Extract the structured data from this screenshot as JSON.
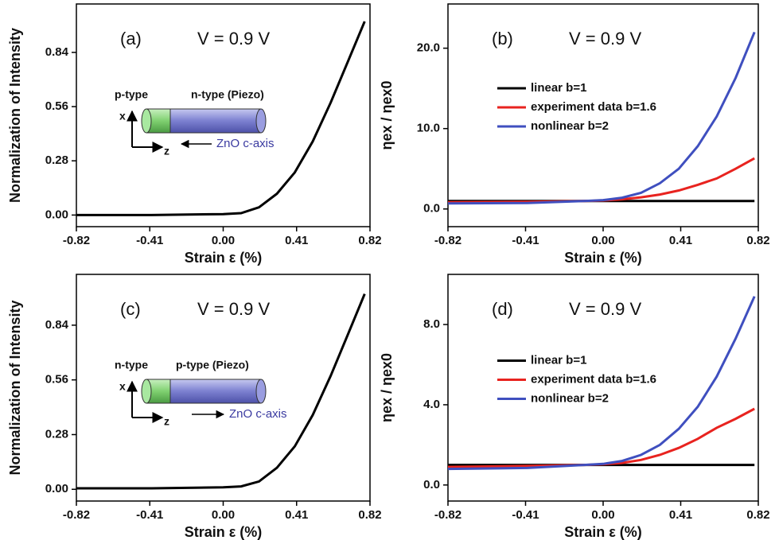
{
  "chart_data": [
    {
      "type": "line",
      "x_label": "Strain ε (%)",
      "y_label": "Normalization of Intensity",
      "annotations": [
        "(a)",
        "V = 0.9 V"
      ],
      "inset": {
        "left": "p-type",
        "right": "n-type (Piezo)",
        "x": "x",
        "z": "z",
        "axis": "ZnO c-axis"
      },
      "x": [
        -0.82,
        -0.4,
        0,
        0.1,
        0.2,
        0.3,
        0.4,
        0.5,
        0.6,
        0.7,
        0.79
      ],
      "values": [
        0,
        0,
        0.005,
        0.01,
        0.04,
        0.11,
        0.22,
        0.38,
        0.58,
        0.8,
        1.0
      ],
      "color": "#000000",
      "xlim": [
        -0.82,
        0.82
      ],
      "xticks": [
        -0.82,
        -0.41,
        {
          "value": 0,
          "label": "0.00"
        },
        0.41,
        0.82
      ],
      "ylim": [
        -0.06,
        1.09
      ],
      "yticks": [
        {
          "value": 0,
          "label": "0.00"
        },
        0.28,
        0.56,
        0.84
      ]
    },
    {
      "type": "line",
      "x_label": "Strain ε (%)",
      "y_label": "ηex / ηex0",
      "annotations": [
        "(b)",
        "V = 0.9 V"
      ],
      "legend": "center left",
      "x": [
        -0.82,
        -0.4,
        -0.1,
        0,
        0.1,
        0.2,
        0.3,
        0.4,
        0.5,
        0.6,
        0.7,
        0.8
      ],
      "series": [
        {
          "name": "linear b=1",
          "color": "#000000",
          "values": [
            1,
            1,
            1,
            1,
            1,
            1,
            1,
            1,
            1,
            1,
            1,
            1
          ]
        },
        {
          "name": "experiment data b=1.6",
          "color": "#e8231f",
          "values": [
            0.85,
            0.9,
            1.0,
            1.05,
            1.2,
            1.45,
            1.8,
            2.3,
            3.0,
            3.8,
            5.0,
            6.3
          ]
        },
        {
          "name": "nonlinear b=2",
          "color": "#3f4fbf",
          "values": [
            0.7,
            0.75,
            1.0,
            1.1,
            1.4,
            2.0,
            3.2,
            5.0,
            7.8,
            11.5,
            16.3,
            22.0
          ]
        }
      ],
      "xlim": [
        -0.82,
        0.82
      ],
      "xticks": [
        -0.82,
        -0.41,
        {
          "value": 0,
          "label": "0.00"
        },
        0.41,
        0.82
      ],
      "ylim": [
        -2.2,
        25.5
      ],
      "yticks": [
        {
          "value": 0,
          "label": "0.0"
        },
        {
          "value": 10,
          "label": "10.0"
        },
        {
          "value": 20,
          "label": "20.0"
        }
      ]
    },
    {
      "type": "line",
      "x_label": "Strain ε (%)",
      "y_label": "Normalization of Intensity",
      "annotations": [
        "(c)",
        "V = 0.9 V"
      ],
      "inset": {
        "left": "n-type",
        "right": "p-type (Piezo)",
        "x": "x",
        "z": "z",
        "axis": "ZnO c-axis"
      },
      "x": [
        -0.82,
        -0.4,
        0,
        0.1,
        0.2,
        0.3,
        0.4,
        0.5,
        0.6,
        0.7,
        0.79
      ],
      "values": [
        0.005,
        0.005,
        0.01,
        0.015,
        0.04,
        0.11,
        0.22,
        0.38,
        0.58,
        0.8,
        1.0
      ],
      "color": "#000000",
      "xlim": [
        -0.82,
        0.82
      ],
      "xticks": [
        -0.82,
        -0.41,
        {
          "value": 0,
          "label": "0.00"
        },
        0.41,
        0.82
      ],
      "ylim": [
        -0.06,
        1.1
      ],
      "yticks": [
        {
          "value": 0,
          "label": "0.00"
        },
        0.28,
        0.56,
        0.84
      ]
    },
    {
      "type": "line",
      "x_label": "Strain ε (%)",
      "y_label": "ηex / ηex0",
      "annotations": [
        "(d)",
        "V = 0.9 V"
      ],
      "legend": "center left",
      "x": [
        -0.82,
        -0.4,
        -0.1,
        0,
        0.1,
        0.2,
        0.3,
        0.4,
        0.5,
        0.6,
        0.7,
        0.8
      ],
      "series": [
        {
          "name": "linear b=1",
          "color": "#000000",
          "values": [
            1,
            1,
            1,
            1,
            1,
            1,
            1,
            1,
            1,
            1,
            1,
            1
          ]
        },
        {
          "name": "experiment data b=1.6",
          "color": "#e8231f",
          "values": [
            0.9,
            0.95,
            1.0,
            1.03,
            1.1,
            1.25,
            1.5,
            1.85,
            2.3,
            2.85,
            3.3,
            3.8
          ]
        },
        {
          "name": "nonlinear b=2",
          "color": "#3f4fbf",
          "values": [
            0.8,
            0.85,
            1.0,
            1.05,
            1.2,
            1.5,
            2.0,
            2.8,
            3.9,
            5.4,
            7.3,
            9.4
          ]
        }
      ],
      "xlim": [
        -0.82,
        0.82
      ],
      "xticks": [
        -0.82,
        -0.41,
        {
          "value": 0,
          "label": "0.00"
        },
        0.41,
        0.82
      ],
      "ylim": [
        -0.8,
        10.5
      ],
      "yticks": [
        {
          "value": 0,
          "label": "0.0"
        },
        {
          "value": 4,
          "label": "4.0"
        },
        {
          "value": 8,
          "label": "8.0"
        }
      ]
    }
  ]
}
